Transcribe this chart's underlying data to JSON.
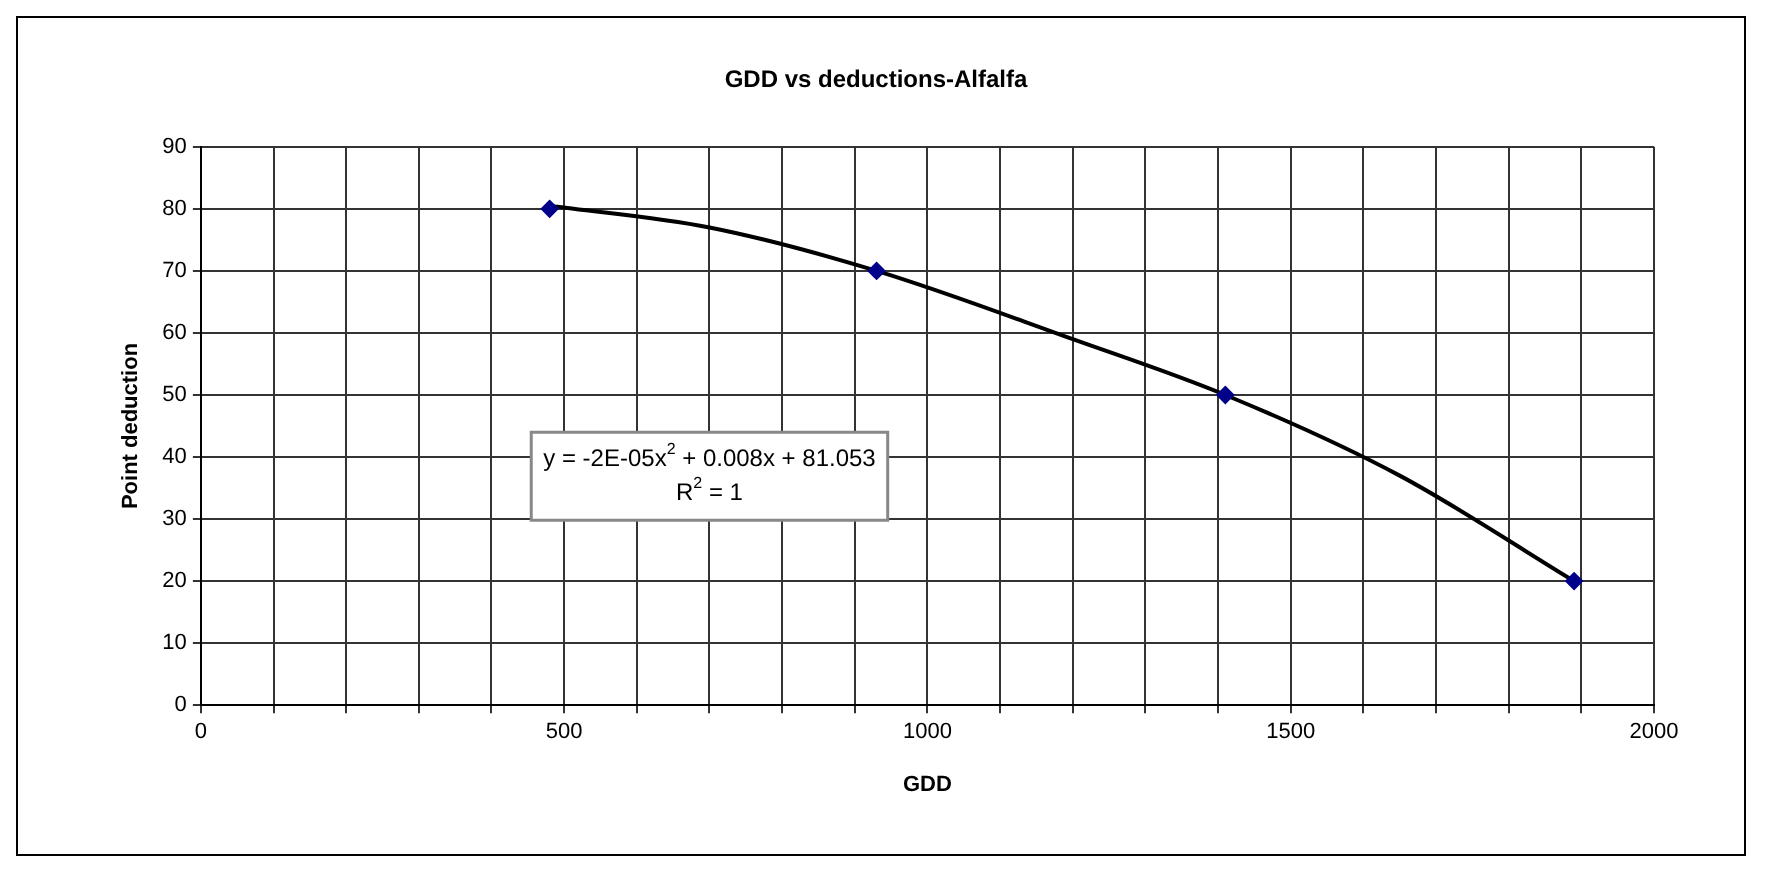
{
  "chart_data": {
    "type": "scatter",
    "title": "GDD vs deductions-Alfalfa",
    "xlabel": "GDD",
    "ylabel": "Point deduction",
    "series": [
      {
        "type": "scatter",
        "color": "#00008b",
        "marker": "diamond",
        "x": [
          480,
          930,
          1410,
          1890
        ],
        "values": [
          80,
          70,
          50,
          20
        ]
      },
      {
        "type": "line",
        "color": "#000000",
        "marker": "none",
        "x": [
          480,
          700,
          930,
          1200,
          1410,
          1650,
          1890
        ],
        "values": [
          80.5,
          77,
          70,
          59,
          50,
          37,
          20
        ]
      }
    ],
    "xlim": [
      0,
      2000
    ],
    "ylim": [
      0,
      90
    ],
    "xticks": [
      0,
      {
        "value": 100,
        "label": null
      },
      {
        "value": 200,
        "label": null
      },
      {
        "value": 300,
        "label": null
      },
      {
        "value": 400,
        "label": null
      },
      500,
      {
        "value": 600,
        "label": null
      },
      {
        "value": 700,
        "label": null
      },
      {
        "value": 800,
        "label": null
      },
      {
        "value": 900,
        "label": null
      },
      1000,
      {
        "value": 1100,
        "label": null
      },
      {
        "value": 1200,
        "label": null
      },
      {
        "value": 1300,
        "label": null
      },
      {
        "value": 1400,
        "label": null
      },
      1500,
      {
        "value": 1600,
        "label": null
      },
      {
        "value": 1700,
        "label": null
      },
      {
        "value": 1800,
        "label": null
      },
      {
        "value": 1900,
        "label": null
      },
      2000
    ],
    "yticks": [
      0,
      10,
      20,
      30,
      40,
      50,
      60,
      70,
      80,
      90
    ],
    "annotations": [
      "y = -2E-05x$^{2}$ + 0.008x + 81.053",
      "R$^{2}$ = 1"
    ],
    "grid": true,
    "legend": false,
    "line_style": "solid"
  }
}
